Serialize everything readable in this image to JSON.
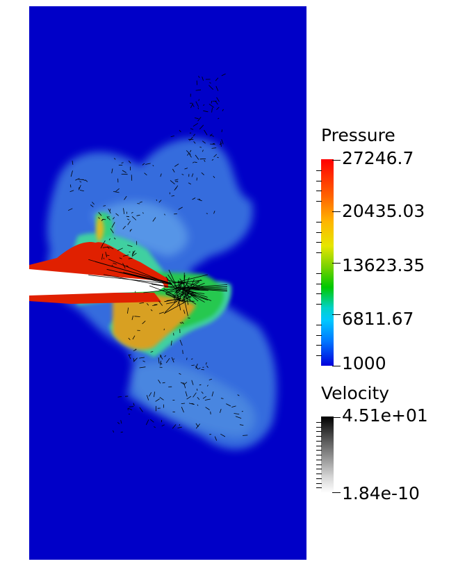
{
  "pressure_legend": {
    "title": "Pressure",
    "labels": [
      "27246.7",
      "20435.03",
      "13623.35",
      "6811.67",
      "1000"
    ],
    "colors": [
      "#ff0000",
      "#ffb400",
      "#00c800",
      "#00c8ff",
      "#0000dc"
    ]
  },
  "velocity_legend": {
    "title": "Velocity",
    "labels": [
      "4.51e+01",
      "1.84e-10"
    ],
    "colors": [
      "#000000",
      "#ffffff"
    ]
  },
  "field": {
    "background_color": "#0000c8"
  }
}
